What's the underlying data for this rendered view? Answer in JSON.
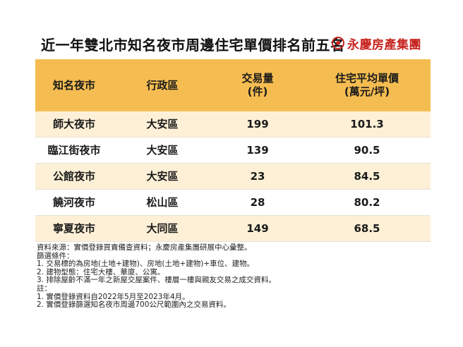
{
  "title": "近一年雙北市知名夜市周邊住宅單價排名前五名",
  "brand": {
    "name": "永慶房產集團",
    "logo_color": "#c8241f"
  },
  "colors": {
    "header_bg": "#f5bd51",
    "odd_row_bg": "#fdf0d7"
  },
  "table": {
    "headers": {
      "market": "知名夜市",
      "district": "行政區",
      "volume": "交易量",
      "volume_unit": "(件)",
      "price": "住宅平均單價",
      "price_unit": "(萬元/坪)"
    },
    "rows": [
      {
        "market": "師大夜市",
        "district": "大安區",
        "volume": "199",
        "price": "101.3"
      },
      {
        "market": "臨江街夜市",
        "district": "大安區",
        "volume": "139",
        "price": "90.5"
      },
      {
        "market": "公館夜市",
        "district": "大安區",
        "volume": "23",
        "price": "84.5"
      },
      {
        "market": "饒河夜市",
        "district": "松山區",
        "volume": "28",
        "price": "80.2"
      },
      {
        "market": "寧夏夜市",
        "district": "大同區",
        "volume": "149",
        "price": "68.5"
      }
    ]
  },
  "notes": [
    "資料來源：實價登錄買賣備查資料；永慶房產集團研展中心彙整。",
    "篩選條件：",
    "1. 交易標的為房地(土地+建物)、房地(土地+建物)+車位、建物。",
    "2. 建物型態：住宅大樓、華廈、公寓。",
    "3. 排除屋齡不滿一年之新屋交屋案件、樓層一樓與親友交易之成交資料。",
    "註：",
    "1. 實價登錄資料自2022年5月至2023年4月。",
    "2. 實價登錄篩選知名夜市周邊700公尺範圍內之交易資料。"
  ]
}
